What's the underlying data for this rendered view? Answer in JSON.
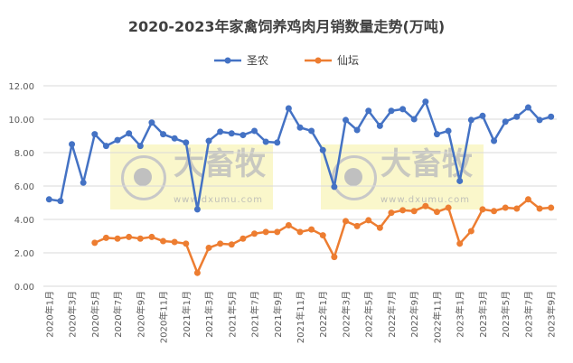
{
  "chart_data": {
    "type": "line",
    "title": "2020-2023年家禽饲养鸡肉月销数量走势(万吨)",
    "xlabel": "",
    "ylabel": "",
    "ylim": [
      0,
      12
    ],
    "yticks": [
      "0.00",
      "2.00",
      "4.00",
      "6.00",
      "8.00",
      "10.00",
      "12.00"
    ],
    "grid": true,
    "legend": "top",
    "x": [
      "2020年1月",
      "2020年2月",
      "2020年3月",
      "2020年4月",
      "2020年5月",
      "2020年6月",
      "2020年7月",
      "2020年8月",
      "2020年9月",
      "2020年10月",
      "2020年11月",
      "2020年12月",
      "2021年1月",
      "2021年2月",
      "2021年3月",
      "2021年4月",
      "2021年5月",
      "2021年6月",
      "2021年7月",
      "2021年8月",
      "2021年9月",
      "2021年10月",
      "2021年11月",
      "2021年12月",
      "2022年1月",
      "2022年2月",
      "2022年3月",
      "2022年4月",
      "2022年5月",
      "2022年6月",
      "2022年7月",
      "2022年8月",
      "2022年9月",
      "2022年10月",
      "2022年11月",
      "2022年12月",
      "2023年1月",
      "2023年2月",
      "2023年3月",
      "2023年4月",
      "2023年5月",
      "2023年6月",
      "2023年7月",
      "2023年8月",
      "2023年9月"
    ],
    "series": [
      {
        "name": "圣农",
        "color": "#4472C4",
        "values": [
          5.2,
          5.1,
          8.5,
          6.2,
          9.1,
          8.4,
          8.75,
          9.15,
          8.4,
          9.8,
          9.1,
          8.85,
          8.6,
          4.6,
          8.7,
          9.25,
          9.15,
          9.05,
          9.3,
          8.65,
          8.6,
          10.65,
          9.5,
          9.3,
          8.15,
          5.95,
          9.95,
          9.35,
          10.5,
          9.6,
          10.5,
          10.6,
          10.0,
          11.05,
          9.1,
          9.3,
          6.3,
          9.95,
          10.2,
          8.7,
          9.85,
          10.15,
          10.7,
          9.95,
          10.15
        ]
      },
      {
        "name": "仙坛",
        "color": "#ED7D31",
        "values": [
          null,
          null,
          null,
          null,
          2.6,
          2.9,
          2.85,
          2.95,
          2.85,
          2.95,
          2.7,
          2.65,
          2.55,
          0.8,
          2.3,
          2.55,
          2.5,
          2.85,
          3.15,
          3.25,
          3.25,
          3.65,
          3.25,
          3.4,
          3.05,
          1.75,
          3.9,
          3.6,
          3.95,
          3.5,
          4.4,
          4.55,
          4.5,
          4.8,
          4.45,
          4.7,
          2.55,
          3.3,
          4.6,
          4.5,
          4.7,
          4.65,
          5.2,
          4.65,
          4.7
        ]
      }
    ]
  },
  "watermark": {
    "brand": "大畜牧",
    "url": "www.dxumu.com"
  }
}
